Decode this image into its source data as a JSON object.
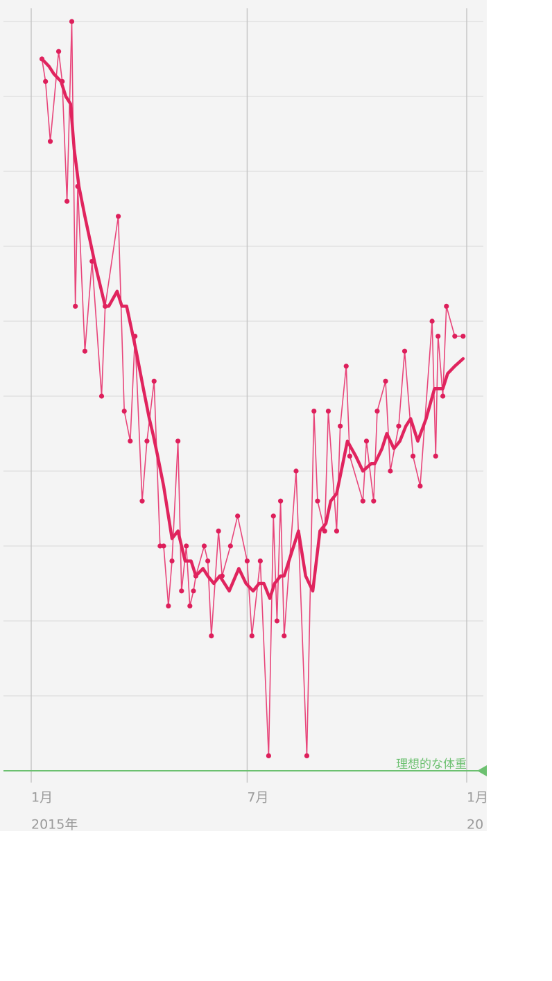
{
  "chart_data": {
    "type": "line",
    "xlim": [
      0,
      365
    ],
    "xticks": [
      {
        "value": 0,
        "label": "1月"
      },
      {
        "value": 181,
        "label": "7月"
      },
      {
        "value": 365,
        "label": "1月"
      }
    ],
    "year_labels": [
      {
        "value": 0,
        "label": "2015年"
      },
      {
        "value": 365,
        "label": "20"
      }
    ],
    "ylim": [
      0,
      10
    ],
    "yticks": [
      0,
      1,
      2,
      3,
      4,
      5,
      6,
      7,
      8,
      9,
      10
    ],
    "grid": true,
    "target": {
      "value": 0,
      "label": "理想的な体重",
      "color": "#6cc070"
    },
    "series": [
      {
        "color": "#e8457a",
        "markers": true,
        "x": [
          9,
          12,
          16,
          23,
          26,
          30,
          34,
          37,
          39,
          45,
          51,
          59,
          62,
          73,
          78,
          83,
          87,
          93,
          97,
          103,
          108,
          111,
          115,
          118,
          123,
          126,
          130,
          133,
          136,
          138,
          145,
          148,
          151,
          157,
          160,
          167,
          173,
          181,
          185,
          192,
          199,
          203,
          206,
          209,
          212,
          222,
          231,
          237,
          240,
          246,
          249,
          256,
          259,
          264,
          267,
          278,
          281,
          287,
          290,
          297,
          301,
          308,
          313,
          320,
          326,
          336,
          339,
          341,
          345,
          348,
          355,
          362
        ],
        "values": [
          9.5,
          9.2,
          8.4,
          9.6,
          9.2,
          7.6,
          10.0,
          6.2,
          7.8,
          5.6,
          6.8,
          5.0,
          6.2,
          7.4,
          4.8,
          4.4,
          5.8,
          3.6,
          4.4,
          5.2,
          3.0,
          3.0,
          2.2,
          2.8,
          4.4,
          2.4,
          3.0,
          2.2,
          2.4,
          2.6,
          3.0,
          2.8,
          1.8,
          3.2,
          2.6,
          3.0,
          3.4,
          2.8,
          1.8,
          2.8,
          0.2,
          3.4,
          2.0,
          3.6,
          1.8,
          4.0,
          0.2,
          4.8,
          3.6,
          3.2,
          4.8,
          3.2,
          4.6,
          5.4,
          4.2,
          3.6,
          4.4,
          3.6,
          4.8,
          5.2,
          4.0,
          4.6,
          5.6,
          4.2,
          3.8,
          6.0,
          4.2,
          5.8,
          5.0,
          6.2,
          5.8,
          5.8
        ]
      },
      {
        "color": "#e0245e",
        "markers": false,
        "x": [
          9,
          15,
          19,
          25,
          29,
          33,
          36,
          40,
          45,
          53,
          62,
          65,
          72,
          76,
          80,
          84,
          88,
          94,
          99,
          102,
          106,
          111,
          115,
          118,
          123,
          126,
          129,
          134,
          138,
          144,
          148,
          153,
          158,
          166,
          174,
          180,
          186,
          191,
          195,
          200,
          204,
          209,
          212,
          218,
          224,
          230,
          236,
          242,
          247,
          251,
          256,
          265,
          272,
          278,
          285,
          288,
          294,
          298,
          304,
          309,
          314,
          318,
          324,
          331,
          338,
          345,
          349,
          355,
          362
        ],
        "values": [
          9.5,
          9.4,
          9.3,
          9.2,
          9.0,
          8.9,
          8.3,
          7.8,
          7.4,
          6.8,
          6.2,
          6.2,
          6.4,
          6.2,
          6.2,
          5.9,
          5.6,
          5.1,
          4.7,
          4.5,
          4.2,
          3.8,
          3.4,
          3.1,
          3.2,
          3.0,
          2.8,
          2.8,
          2.6,
          2.7,
          2.6,
          2.5,
          2.6,
          2.4,
          2.7,
          2.5,
          2.4,
          2.5,
          2.5,
          2.3,
          2.5,
          2.6,
          2.6,
          2.9,
          3.2,
          2.6,
          2.4,
          3.2,
          3.3,
          3.6,
          3.7,
          4.4,
          4.2,
          4.0,
          4.1,
          4.1,
          4.3,
          4.5,
          4.3,
          4.4,
          4.6,
          4.7,
          4.4,
          4.7,
          5.1,
          5.1,
          5.3,
          5.4,
          5.5
        ]
      }
    ]
  }
}
